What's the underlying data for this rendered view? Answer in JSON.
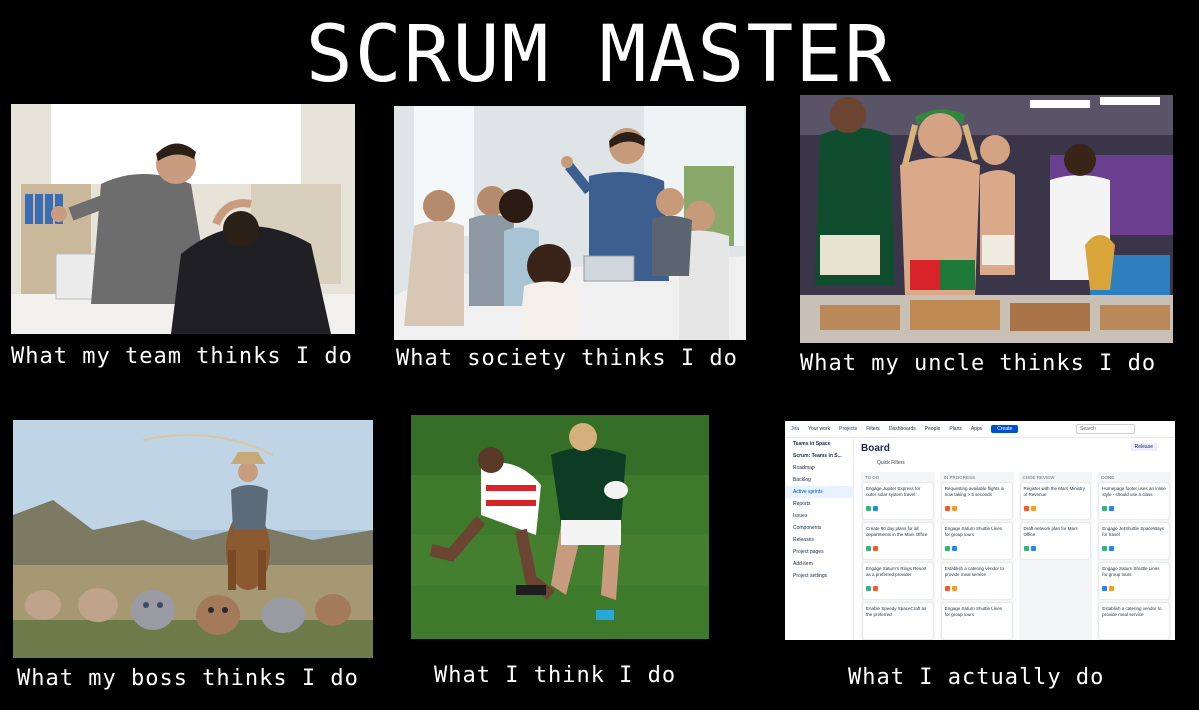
{
  "title": "SCRUM MASTER",
  "captions": {
    "team": "What my team thinks I do",
    "society": "What society thinks I do",
    "uncle": "What my uncle thinks I do",
    "boss": "What my boss thinks I do",
    "me": "What I think I do",
    "actual": "What I actually do"
  },
  "jira": {
    "nav": [
      "Jira",
      "Your work",
      "Projects",
      "Filters",
      "Dashboards",
      "People",
      "Plans",
      "Apps"
    ],
    "create": "Create",
    "search": "Search",
    "project": "Teams in Space",
    "sidebar": [
      "Scrum: Teams in S...",
      "Roadmap",
      "Backlog",
      "Active sprints",
      "Reports",
      "Issues",
      "Components",
      "Releases",
      "Project pages",
      "Add item",
      "Project settings"
    ],
    "board_title": "Board",
    "release": "Release",
    "quick_filters": "Quick Filters",
    "columns": [
      {
        "name": "TO DO",
        "cards": [
          "Engage Jupiter Express for outer solar system travel",
          "Create 90 day plans for all departments in the Mars Office",
          "Engage Saturn's Rings Resort as a preferred provider",
          "Enable Speedy SpaceCraft as the preferred"
        ]
      },
      {
        "name": "IN PROGRESS",
        "cards": [
          "Requesting available flights is now taking > 5 seconds",
          "Engage Saturn Shuttle Lines for group tours",
          "Establish a catering vendor to provide meal service",
          "Engage Saturn Shuttle Lines for group tours"
        ]
      },
      {
        "name": "CODE REVIEW",
        "cards": [
          "Register with the Mars Ministry of Revenue",
          "Draft network plan for Mars Office"
        ]
      },
      {
        "name": "DONE",
        "cards": [
          "Homepage footer uses an inline style - should use a class",
          "Engage JetShuttle SpaceWays for travel",
          "Engage Saturn Shuttle Lines for group tours",
          "Establish a catering vendor to provide meal service"
        ]
      }
    ]
  }
}
